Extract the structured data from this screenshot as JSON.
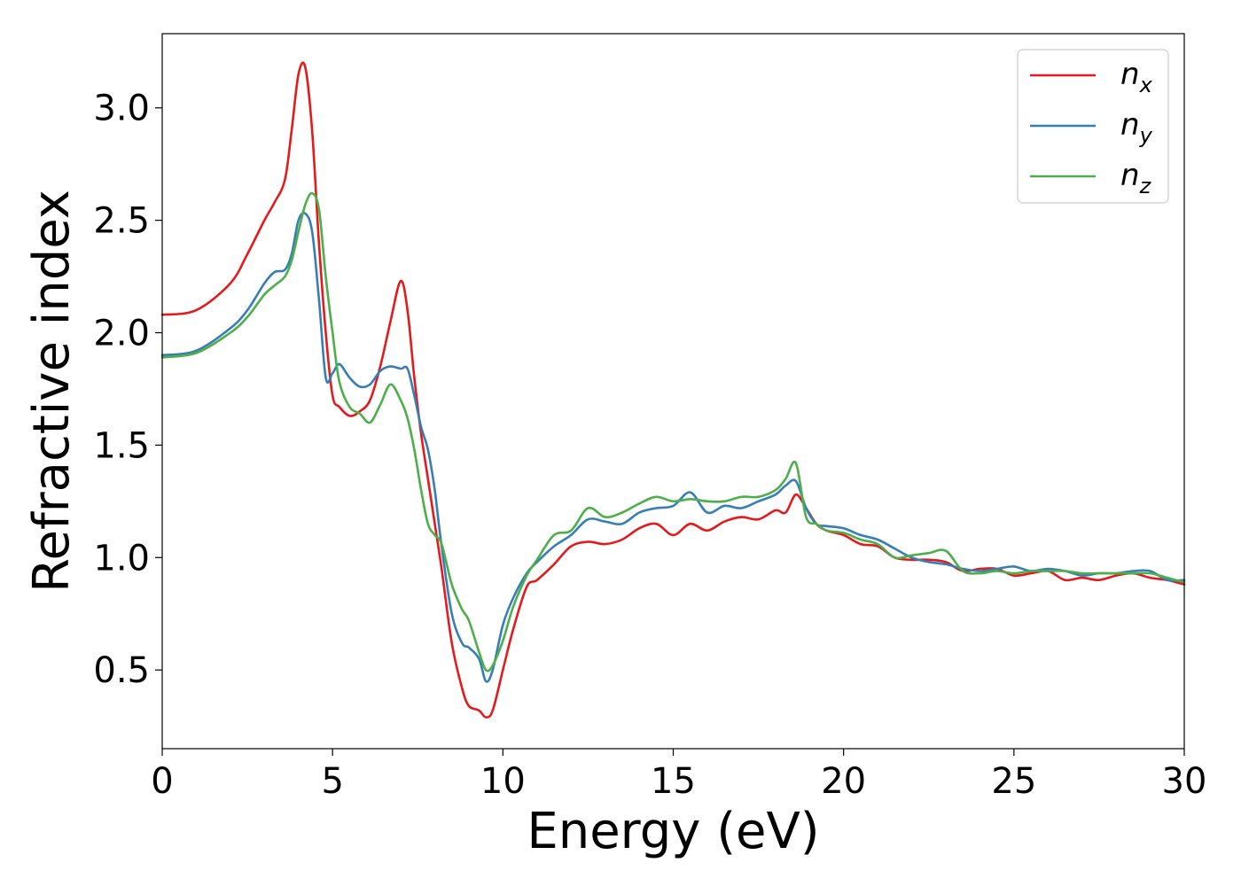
{
  "chart_data": {
    "type": "line",
    "title": "",
    "xlabel": "Energy (eV)",
    "ylabel": "Refractive index",
    "xlim": [
      0,
      30
    ],
    "ylim": [
      0.15,
      3.33
    ],
    "xticks": [
      0,
      5,
      10,
      15,
      20,
      25,
      30
    ],
    "yticks": [
      0.5,
      1.0,
      1.5,
      2.0,
      2.5,
      3.0
    ],
    "xtick_labels": [
      "0",
      "5",
      "10",
      "15",
      "20",
      "25",
      "30"
    ],
    "ytick_labels": [
      "0.5",
      "1.0",
      "1.5",
      "2.0",
      "2.5",
      "3.0"
    ],
    "grid": false,
    "legend_position": "top-right",
    "series": [
      {
        "name": "n_x",
        "legend_base": "n",
        "legend_sub": "x",
        "color": "#e41a1c",
        "x": [
          0,
          1,
          2,
          2.5,
          3,
          3.3,
          3.6,
          3.8,
          4.0,
          4.2,
          4.4,
          4.6,
          4.8,
          5.0,
          5.2,
          5.5,
          5.8,
          6.1,
          6.4,
          6.7,
          7.0,
          7.2,
          7.4,
          7.6,
          7.8,
          8.0,
          8.2,
          8.5,
          8.8,
          9.0,
          9.3,
          9.5,
          9.7,
          10.0,
          10.3,
          10.7,
          11.0,
          11.5,
          12.0,
          12.5,
          13.0,
          13.5,
          14.0,
          14.5,
          15.0,
          15.5,
          16.0,
          16.5,
          17.0,
          17.5,
          18.0,
          18.3,
          18.6,
          18.9,
          19.2,
          19.5,
          20.0,
          20.5,
          21.0,
          21.5,
          22.0,
          22.5,
          23.0,
          23.5,
          24.0,
          24.5,
          25.0,
          25.5,
          26.0,
          26.5,
          27.0,
          27.5,
          28.0,
          28.5,
          29.0,
          29.5,
          30.0
        ],
        "y": [
          2.08,
          2.1,
          2.22,
          2.35,
          2.5,
          2.58,
          2.68,
          2.9,
          3.15,
          3.18,
          2.9,
          2.4,
          2.0,
          1.72,
          1.67,
          1.63,
          1.65,
          1.7,
          1.85,
          2.05,
          2.23,
          2.1,
          1.8,
          1.55,
          1.35,
          1.15,
          0.95,
          0.62,
          0.42,
          0.34,
          0.32,
          0.29,
          0.32,
          0.5,
          0.68,
          0.87,
          0.9,
          0.97,
          1.05,
          1.07,
          1.06,
          1.08,
          1.13,
          1.15,
          1.1,
          1.15,
          1.12,
          1.16,
          1.18,
          1.17,
          1.21,
          1.2,
          1.28,
          1.22,
          1.15,
          1.12,
          1.1,
          1.06,
          1.05,
          1.0,
          0.99,
          0.99,
          0.98,
          0.94,
          0.95,
          0.95,
          0.92,
          0.93,
          0.94,
          0.9,
          0.91,
          0.9,
          0.92,
          0.93,
          0.91,
          0.9,
          0.88
        ]
      },
      {
        "name": "n_y",
        "legend_base": "n",
        "legend_sub": "y",
        "color": "#377eb8",
        "x": [
          0,
          1,
          2,
          2.5,
          3,
          3.3,
          3.6,
          3.8,
          4.0,
          4.2,
          4.4,
          4.6,
          4.8,
          5.0,
          5.2,
          5.5,
          5.8,
          6.1,
          6.4,
          6.7,
          7.0,
          7.2,
          7.4,
          7.6,
          7.8,
          8.0,
          8.2,
          8.5,
          8.8,
          9.0,
          9.3,
          9.5,
          9.7,
          10.0,
          10.3,
          10.7,
          11.0,
          11.5,
          12.0,
          12.5,
          13.0,
          13.5,
          14.0,
          14.5,
          15.0,
          15.5,
          16.0,
          16.5,
          17.0,
          17.5,
          18.0,
          18.3,
          18.6,
          18.9,
          19.2,
          19.5,
          20.0,
          20.5,
          21.0,
          21.5,
          22.0,
          22.5,
          23.0,
          23.5,
          24.0,
          24.5,
          25.0,
          25.5,
          26.0,
          26.5,
          27.0,
          27.5,
          28.0,
          28.5,
          29.0,
          29.5,
          30.0
        ],
        "y": [
          1.9,
          1.92,
          2.02,
          2.1,
          2.22,
          2.27,
          2.28,
          2.35,
          2.5,
          2.53,
          2.45,
          2.15,
          1.8,
          1.82,
          1.86,
          1.8,
          1.76,
          1.77,
          1.83,
          1.85,
          1.84,
          1.84,
          1.72,
          1.58,
          1.48,
          1.3,
          1.05,
          0.75,
          0.62,
          0.6,
          0.55,
          0.45,
          0.5,
          0.7,
          0.82,
          0.93,
          0.98,
          1.05,
          1.1,
          1.17,
          1.16,
          1.15,
          1.2,
          1.22,
          1.23,
          1.29,
          1.2,
          1.23,
          1.22,
          1.25,
          1.28,
          1.32,
          1.34,
          1.22,
          1.15,
          1.14,
          1.13,
          1.1,
          1.08,
          1.04,
          1.0,
          0.98,
          0.97,
          0.95,
          0.94,
          0.95,
          0.96,
          0.94,
          0.95,
          0.94,
          0.92,
          0.93,
          0.93,
          0.94,
          0.94,
          0.9,
          0.9
        ]
      },
      {
        "name": "n_z",
        "legend_base": "n",
        "legend_sub": "z",
        "color": "#4daf4a",
        "x": [
          0,
          1,
          2,
          2.5,
          3,
          3.3,
          3.6,
          3.8,
          4.0,
          4.2,
          4.4,
          4.6,
          4.8,
          5.0,
          5.2,
          5.5,
          5.8,
          6.1,
          6.4,
          6.7,
          7.0,
          7.2,
          7.4,
          7.6,
          7.8,
          8.0,
          8.2,
          8.5,
          8.8,
          9.0,
          9.3,
          9.5,
          9.7,
          10.0,
          10.3,
          10.7,
          11.0,
          11.5,
          12.0,
          12.5,
          13.0,
          13.5,
          14.0,
          14.5,
          15.0,
          15.5,
          16.0,
          16.5,
          17.0,
          17.5,
          18.0,
          18.3,
          18.6,
          18.9,
          19.2,
          19.5,
          20.0,
          20.5,
          21.0,
          21.5,
          22.0,
          22.5,
          23.0,
          23.5,
          24.0,
          24.5,
          25.0,
          25.5,
          26.0,
          26.5,
          27.0,
          27.5,
          28.0,
          28.5,
          29.0,
          29.5,
          30.0
        ],
        "y": [
          1.89,
          1.91,
          2.0,
          2.07,
          2.17,
          2.21,
          2.25,
          2.32,
          2.45,
          2.57,
          2.62,
          2.55,
          2.25,
          2.0,
          1.78,
          1.67,
          1.64,
          1.6,
          1.68,
          1.77,
          1.7,
          1.62,
          1.48,
          1.3,
          1.15,
          1.1,
          1.06,
          0.88,
          0.77,
          0.72,
          0.58,
          0.5,
          0.52,
          0.63,
          0.78,
          0.92,
          0.99,
          1.1,
          1.12,
          1.22,
          1.18,
          1.2,
          1.24,
          1.27,
          1.25,
          1.26,
          1.25,
          1.25,
          1.27,
          1.27,
          1.3,
          1.35,
          1.42,
          1.18,
          1.15,
          1.12,
          1.11,
          1.08,
          1.06,
          1.0,
          1.01,
          1.02,
          1.03,
          0.94,
          0.93,
          0.94,
          0.93,
          0.94,
          0.94,
          0.94,
          0.93,
          0.93,
          0.93,
          0.93,
          0.93,
          0.91,
          0.89
        ]
      }
    ]
  }
}
